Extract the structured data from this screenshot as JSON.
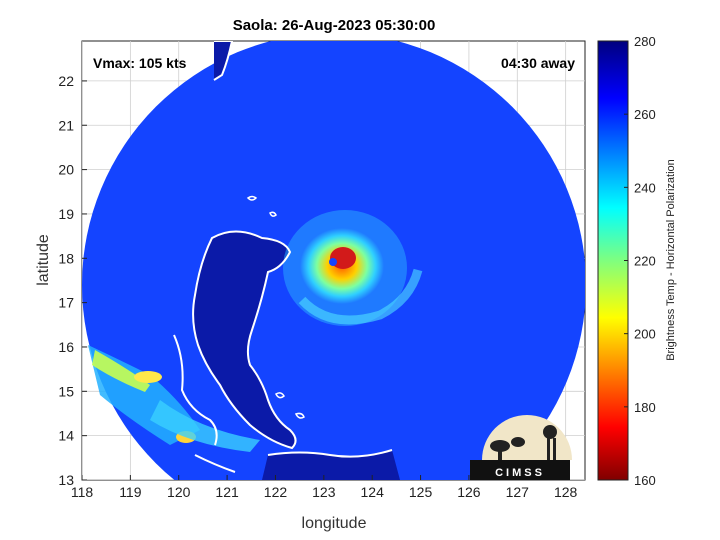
{
  "title": "Saola: 26-Aug-2023 05:30:00",
  "annotations": {
    "vmax": "Vmax: 105 kts",
    "time_away": "04:30 away"
  },
  "logo": {
    "text": "CIMSS",
    "icon": "cimss-logo-icon"
  },
  "chart_data": {
    "type": "heatmap",
    "title": "Saola: 26-Aug-2023 05:30:00",
    "xlabel": "longitude",
    "ylabel": "latitude",
    "xlim": [
      118,
      128.4
    ],
    "ylim": [
      13,
      22.9
    ],
    "xticks": [
      118,
      119,
      120,
      121,
      122,
      123,
      124,
      125,
      126,
      127,
      128
    ],
    "yticks": [
      13,
      14,
      15,
      16,
      17,
      18,
      19,
      20,
      21,
      22
    ],
    "grid": true,
    "colorbar": {
      "label": "Brightness Temp - Horizontal Polarization",
      "range": [
        160,
        280
      ],
      "ticks": [
        160,
        180,
        200,
        220,
        240,
        260,
        280
      ],
      "colormap": "jet"
    },
    "storm_center": {
      "lon": 123.3,
      "lat": 17.95
    },
    "swath_center": {
      "lon": 123.2,
      "lat": 17.6
    },
    "colors": {
      "background_scene": "#1244ff",
      "land": "#0a1aa0",
      "coastline": "#ffffff",
      "eye_min": "#c81414"
    }
  }
}
